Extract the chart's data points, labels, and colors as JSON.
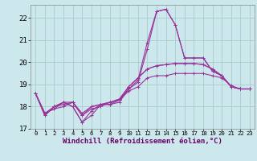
{
  "bg_color": "#cce8ec",
  "grid_color": "#aacccc",
  "line_color": "#993399",
  "xlabel": "Windchill (Refroidissement éolien,°C)",
  "xlim": [
    -0.5,
    23.5
  ],
  "ylim": [
    17,
    22.6
  ],
  "yticks": [
    17,
    18,
    19,
    20,
    21,
    22
  ],
  "xticks": [
    0,
    1,
    2,
    3,
    4,
    5,
    6,
    7,
    8,
    9,
    10,
    11,
    12,
    13,
    14,
    15,
    16,
    17,
    18,
    19,
    20,
    21,
    22,
    23
  ],
  "lines": [
    [
      18.6,
      17.6,
      18.0,
      18.2,
      18.0,
      17.3,
      17.6,
      18.1,
      18.1,
      18.2,
      18.8,
      19.1,
      20.6,
      22.3,
      22.4,
      21.7,
      20.2,
      20.2,
      20.2,
      19.6,
      19.4,
      18.9,
      18.8,
      18.8
    ],
    [
      18.6,
      17.6,
      18.0,
      18.2,
      18.0,
      17.3,
      17.8,
      18.1,
      18.1,
      18.3,
      18.8,
      19.2,
      20.9,
      22.3,
      22.4,
      21.7,
      20.2,
      20.2,
      20.2,
      19.6,
      19.4,
      18.9,
      18.8,
      18.8
    ],
    [
      18.6,
      17.7,
      17.9,
      18.2,
      18.2,
      17.7,
      18.0,
      18.1,
      18.2,
      18.3,
      18.9,
      19.3,
      19.7,
      19.85,
      19.9,
      19.95,
      19.95,
      19.95,
      19.9,
      19.7,
      19.4,
      18.9,
      18.8,
      18.8
    ],
    [
      18.6,
      17.7,
      17.9,
      18.0,
      18.2,
      17.6,
      18.0,
      18.1,
      18.2,
      18.35,
      18.9,
      19.3,
      19.7,
      19.85,
      19.9,
      19.95,
      19.95,
      19.95,
      19.9,
      19.7,
      19.4,
      18.9,
      18.8,
      18.8
    ],
    [
      18.6,
      17.7,
      18.0,
      18.1,
      18.2,
      17.6,
      17.9,
      18.0,
      18.2,
      18.3,
      18.7,
      18.9,
      19.3,
      19.4,
      19.4,
      19.5,
      19.5,
      19.5,
      19.5,
      19.4,
      19.3,
      18.95,
      18.8,
      18.8
    ]
  ],
  "xlabel_fontsize": 6.5,
  "xlabel_color": "#660066",
  "xtick_fontsize": 5.2,
  "ytick_fontsize": 6.5
}
